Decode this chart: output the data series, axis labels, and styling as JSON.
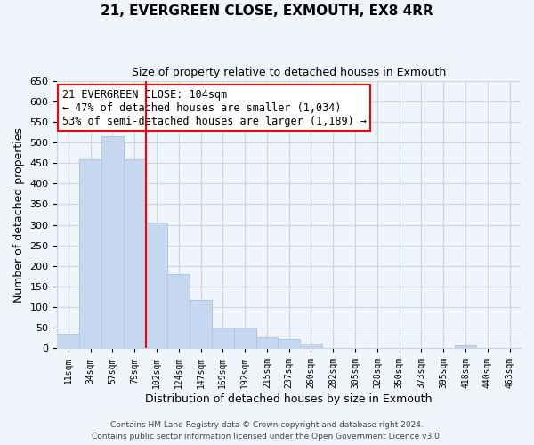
{
  "title": "21, EVERGREEN CLOSE, EXMOUTH, EX8 4RR",
  "subtitle": "Size of property relative to detached houses in Exmouth",
  "xlabel": "Distribution of detached houses by size in Exmouth",
  "ylabel": "Number of detached properties",
  "bar_labels": [
    "11sqm",
    "34sqm",
    "57sqm",
    "79sqm",
    "102sqm",
    "124sqm",
    "147sqm",
    "169sqm",
    "192sqm",
    "215sqm",
    "237sqm",
    "260sqm",
    "282sqm",
    "305sqm",
    "328sqm",
    "350sqm",
    "373sqm",
    "395sqm",
    "418sqm",
    "440sqm",
    "463sqm"
  ],
  "bar_values": [
    35,
    460,
    515,
    460,
    305,
    181,
    117,
    50,
    50,
    28,
    22,
    12,
    0,
    0,
    0,
    0,
    0,
    0,
    7,
    0,
    0
  ],
  "bar_color": "#c5d8f0",
  "bar_edge_color": "#aec6e0",
  "marker_color": "red",
  "annotation_line1": "21 EVERGREEN CLOSE: 104sqm",
  "annotation_line2": "← 47% of detached houses are smaller (1,034)",
  "annotation_line3": "53% of semi-detached houses are larger (1,189) →",
  "annotation_box_color": "white",
  "annotation_box_edge_color": "red",
  "vline_x": 3.5,
  "ylim": [
    0,
    650
  ],
  "yticks": [
    0,
    50,
    100,
    150,
    200,
    250,
    300,
    350,
    400,
    450,
    500,
    550,
    600,
    650
  ],
  "footnote1": "Contains HM Land Registry data © Crown copyright and database right 2024.",
  "footnote2": "Contains public sector information licensed under the Open Government Licence v3.0.",
  "bg_color": "#f0f4fb",
  "grid_color": "#c8d4e8",
  "title_fontsize": 11,
  "subtitle_fontsize": 9
}
